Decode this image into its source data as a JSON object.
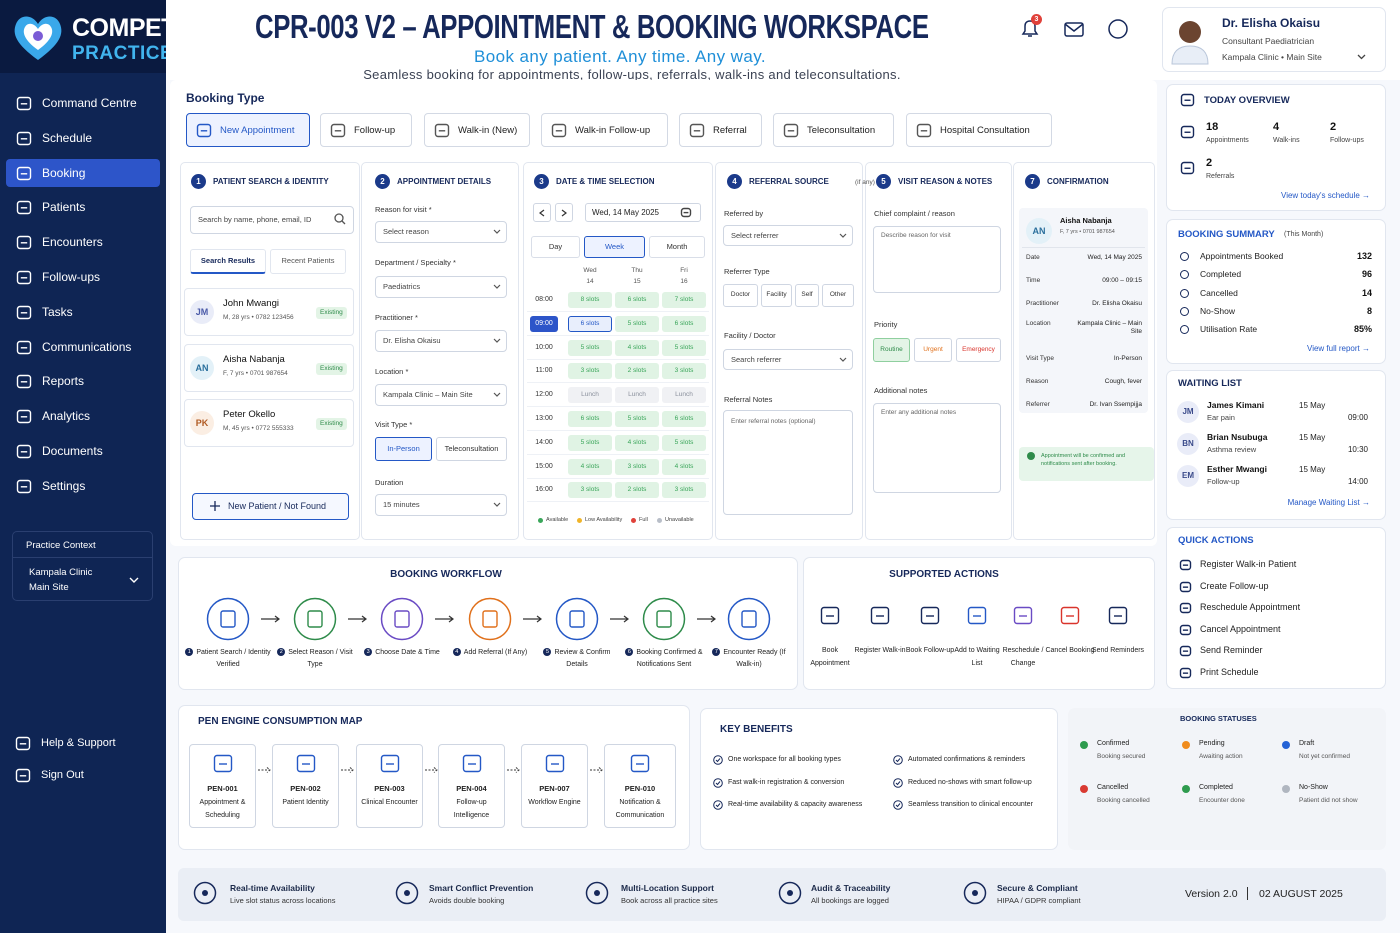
{
  "sidebar": {
    "brand": {
      "name": "COMPETEN",
      "tagline": "PRACTICE"
    },
    "nav": [
      {
        "label": "Command Centre"
      },
      {
        "label": "Schedule"
      },
      {
        "label": "Booking",
        "active": true
      },
      {
        "label": "Patients"
      },
      {
        "label": "Encounters"
      },
      {
        "label": "Follow-ups"
      },
      {
        "label": "Tasks"
      },
      {
        "label": "Communications"
      },
      {
        "label": "Reports"
      },
      {
        "label": "Analytics"
      },
      {
        "label": "Documents"
      },
      {
        "label": "Settings"
      }
    ],
    "practice_context": {
      "title": "Practice Context",
      "clinic": "Kampala Clinic",
      "site": "Main Site"
    },
    "footer_links": [
      "Help & Support",
      "Sign Out"
    ]
  },
  "header": {
    "title": "CPR-003 V2 – APPOINTMENT & BOOKING WORKSPACE",
    "subtitle": "Book any patient. Any time. Any way.",
    "tagline": "Seamless booking for appointments, follow-ups, referrals, walk-ins and teleconsultations.",
    "notification_count": 3,
    "user": {
      "name": "Dr. Elisha Okaisu",
      "role": "Consultant Paediatrician",
      "location": "Kampala Clinic • Main Site"
    }
  },
  "booking_type": {
    "label": "Booking Type",
    "options": [
      {
        "label": "New Appointment",
        "active": true
      },
      {
        "label": "Follow-up"
      },
      {
        "label": "Walk-in (New)"
      },
      {
        "label": "Walk-in Follow-up"
      },
      {
        "label": "Referral"
      },
      {
        "label": "Teleconsultation"
      },
      {
        "label": "Hospital Consultation"
      }
    ]
  },
  "patient_search": {
    "step": 1,
    "title": "PATIENT SEARCH & IDENTITY",
    "search_placeholder": "Search by name, phone, email, ID",
    "tabs": [
      "Search Results",
      "Recent Patients"
    ],
    "patients": [
      {
        "initials": "JM",
        "name": "John Mwangi",
        "details": "M, 28 yrs • 0782 123456",
        "status": "Existing"
      },
      {
        "initials": "AN",
        "name": "Aisha Nabanja",
        "details": "F, 7 yrs • 0701 987654",
        "status": "Existing"
      },
      {
        "initials": "PK",
        "name": "Peter Okello",
        "details": "M, 45 yrs • 0772 555333",
        "status": "Existing"
      }
    ],
    "new_patient": "New Patient / Not Found"
  },
  "appointment_details": {
    "step": 2,
    "title": "APPOINTMENT DETAILS",
    "fields": [
      {
        "label": "Reason for visit *",
        "value": "Select reason"
      },
      {
        "label": "Department / Specialty *",
        "value": "Paediatrics"
      },
      {
        "label": "Practitioner *",
        "value": "Dr. Elisha Okaisu"
      },
      {
        "label": "Location *",
        "value": "Kampala Clinic – Main Site"
      }
    ],
    "visit_type": {
      "label": "Visit Type *",
      "options": [
        "In-Person",
        "Teleconsultation"
      ]
    },
    "duration": {
      "label": "Duration",
      "value": "15 minutes"
    }
  },
  "date_time": {
    "step": 3,
    "title": "DATE & TIME SELECTION",
    "date": "Wed, 14 May 2025",
    "views": [
      "Day",
      "Week",
      "Month"
    ],
    "days": [
      {
        "day": "Wed",
        "date": 14
      },
      {
        "day": "Thu",
        "date": 15
      },
      {
        "day": "Fri",
        "date": 16
      }
    ],
    "rows": [
      {
        "time": "08:00",
        "slots": [
          "8 slots",
          "6 slots",
          "7 slots"
        ]
      },
      {
        "time": "09:00",
        "slots": [
          "6 slots",
          "5 slots",
          "6 slots"
        ],
        "selected": true
      },
      {
        "time": "10:00",
        "slots": [
          "5 slots",
          "4 slots",
          "5 slots"
        ]
      },
      {
        "time": "11:00",
        "slots": [
          "3 slots",
          "2 slots",
          "3 slots"
        ]
      },
      {
        "time": "12:00",
        "slots": [
          "Lunch",
          "Lunch",
          "Lunch"
        ],
        "unavailable": true
      },
      {
        "time": "13:00",
        "slots": [
          "6 slots",
          "5 slots",
          "6 slots"
        ]
      },
      {
        "time": "14:00",
        "slots": [
          "5 slots",
          "4 slots",
          "5 slots"
        ]
      },
      {
        "time": "15:00",
        "slots": [
          "4 slots",
          "3 slots",
          "4 slots"
        ]
      },
      {
        "time": "16:00",
        "slots": [
          "3 slots",
          "2 slots",
          "3 slots"
        ]
      }
    ],
    "legend": [
      {
        "label": "Available",
        "color": "#3aa65a"
      },
      {
        "label": "Low Availability",
        "color": "#f0b429"
      },
      {
        "label": "Full",
        "color": "#e0413a"
      },
      {
        "label": "Unavailable",
        "color": "#b8bec8"
      }
    ]
  },
  "referral": {
    "step": 4,
    "title": "REFERRAL SOURCE",
    "title_note": "(if any)",
    "referred_by": {
      "label": "Referred by",
      "placeholder": "Select referrer"
    },
    "referrer_type": {
      "label": "Referrer Type",
      "options": [
        "Doctor",
        "Facility",
        "Self",
        "Other"
      ]
    },
    "facility": {
      "label": "Facility / Doctor",
      "placeholder": "Search referrer"
    },
    "notes": {
      "label": "Referral Notes",
      "placeholder": "Enter referral notes (optional)"
    }
  },
  "visit_reason": {
    "step": 5,
    "title": "VISIT REASON & NOTES",
    "complaint": {
      "label": "Chief complaint / reason",
      "placeholder": "Describe reason for visit"
    },
    "priority": {
      "label": "Priority",
      "options": [
        "Routine",
        "Urgent",
        "Emergency"
      ]
    },
    "notes": {
      "label": "Additional notes",
      "placeholder": "Enter any additional notes"
    }
  },
  "confirmation": {
    "step": 7,
    "title": "CONFIRMATION",
    "patient": {
      "initials": "AN",
      "name": "Aisha Nabanja",
      "details": "F, 7 yrs • 0701 987654"
    },
    "rows": [
      {
        "label": "Date",
        "value": "Wed, 14 May 2025"
      },
      {
        "label": "Time",
        "value": "09:00 – 09:15"
      },
      {
        "label": "Practitioner",
        "value": "Dr. Elisha Okaisu"
      },
      {
        "label": "Location",
        "value": "Kampala Clinic – Main Site"
      },
      {
        "label": "Visit Type",
        "value": "In-Person"
      },
      {
        "label": "Reason",
        "value": "Cough, fever"
      },
      {
        "label": "Referrer",
        "value": "Dr. Ivan Ssempijja"
      }
    ],
    "note": "Appointment will be confirmed and notifications sent after booking."
  },
  "today_overview": {
    "title": "TODAY OVERVIEW",
    "stats": [
      {
        "value": 18,
        "label": "Appointments"
      },
      {
        "value": 4,
        "label": "Walk-ins"
      },
      {
        "value": 2,
        "label": "Follow-ups"
      },
      {
        "value": 2,
        "label": "Referrals"
      }
    ],
    "link": "View today's schedule →"
  },
  "booking_summary": {
    "title": "BOOKING SUMMARY",
    "period": "(This Month)",
    "rows": [
      {
        "label": "Appointments Booked",
        "value": 132
      },
      {
        "label": "Completed",
        "value": 96
      },
      {
        "label": "Cancelled",
        "value": 14
      },
      {
        "label": "No-Show",
        "value": 8
      },
      {
        "label": "Utilisation Rate",
        "value": "85%"
      }
    ],
    "link": "View full report →"
  },
  "waiting_list": {
    "title": "WAITING LIST",
    "entries": [
      {
        "initials": "JM",
        "name": "James Kimani",
        "reason": "Ear pain",
        "date": "15 May",
        "time": "09:00"
      },
      {
        "initials": "BN",
        "name": "Brian Nsubuga",
        "reason": "Asthma review",
        "date": "15 May",
        "time": "10:30"
      },
      {
        "initials": "EM",
        "name": "Esther Mwangi",
        "reason": "Follow-up",
        "date": "15 May",
        "time": "14:00"
      }
    ],
    "link": "Manage Waiting List →"
  },
  "quick_actions": {
    "title": "QUICK ACTIONS",
    "items": [
      "Register Walk-in Patient",
      "Create Follow-up",
      "Reschedule Appointment",
      "Cancel Appointment",
      "Send Reminder",
      "Print Schedule"
    ]
  },
  "workflow": {
    "title": "BOOKING WORKFLOW",
    "steps": [
      {
        "number": 1,
        "label": "Patient Search / Identity Verified"
      },
      {
        "number": 2,
        "label": "Select Reason / Visit Type"
      },
      {
        "number": 3,
        "label": "Choose Date & Time"
      },
      {
        "number": 4,
        "label": "Add Referral (If Any)"
      },
      {
        "number": 5,
        "label": "Review & Confirm Details"
      },
      {
        "number": 6,
        "label": "Booking Confirmed & Notifications Sent"
      },
      {
        "number": 7,
        "label": "Encounter Ready (If Walk-in)"
      }
    ]
  },
  "supported_actions": {
    "title": "SUPPORTED ACTIONS",
    "items": [
      "Book Appointment",
      "Register Walk-in",
      "Book Follow-up",
      "Add to Waiting List",
      "Reschedule / Change",
      "Cancel Booking",
      "Send Reminders"
    ]
  },
  "pen_map": {
    "title": "PEN ENGINE CONSUMPTION MAP",
    "engines": [
      {
        "code": "PEN-001",
        "name": "Appointment & Scheduling"
      },
      {
        "code": "PEN-002",
        "name": "Patient Identity"
      },
      {
        "code": "PEN-003",
        "name": "Clinical Encounter"
      },
      {
        "code": "PEN-004",
        "name": "Follow-up Intelligence"
      },
      {
        "code": "PEN-007",
        "name": "Workflow Engine"
      },
      {
        "code": "PEN-010",
        "name": "Notification & Communication"
      }
    ]
  },
  "key_benefits": {
    "title": "KEY BENEFITS",
    "items": [
      "One workspace for all booking types",
      "Fast walk-in registration & conversion",
      "Real-time availability & capacity awareness",
      "Automated confirmations & reminders",
      "Reduced no-shows with smart follow-up",
      "Seamless transition to clinical encounter"
    ]
  },
  "booking_statuses": {
    "title": "BOOKING STATUSES",
    "items": [
      {
        "name": "Confirmed",
        "description": "Booking secured",
        "color": "#2e9b4e"
      },
      {
        "name": "Pending",
        "description": "Awaiting action",
        "color": "#f08c1e"
      },
      {
        "name": "Draft",
        "description": "Not yet confirmed",
        "color": "#2563d6"
      },
      {
        "name": "Cancelled",
        "description": "Booking cancelled",
        "color": "#d93a32"
      },
      {
        "name": "Completed",
        "description": "Encounter done",
        "color": "#2e9b4e"
      },
      {
        "name": "No-Show",
        "description": "Patient did not show",
        "color": "#b0b6c0"
      }
    ]
  },
  "footer": {
    "features": [
      {
        "title": "Real-time Availability",
        "description": "Live slot status across locations"
      },
      {
        "title": "Smart Conflict Prevention",
        "description": "Avoids double booking"
      },
      {
        "title": "Multi-Location Support",
        "description": "Book across all practice sites"
      },
      {
        "title": "Audit & Traceability",
        "description": "All bookings are logged"
      },
      {
        "title": "Secure & Compliant",
        "description": "HIPAA / GDPR compliant"
      }
    ],
    "version": "Version 2.0",
    "date": "02 AUGUST 2025"
  }
}
